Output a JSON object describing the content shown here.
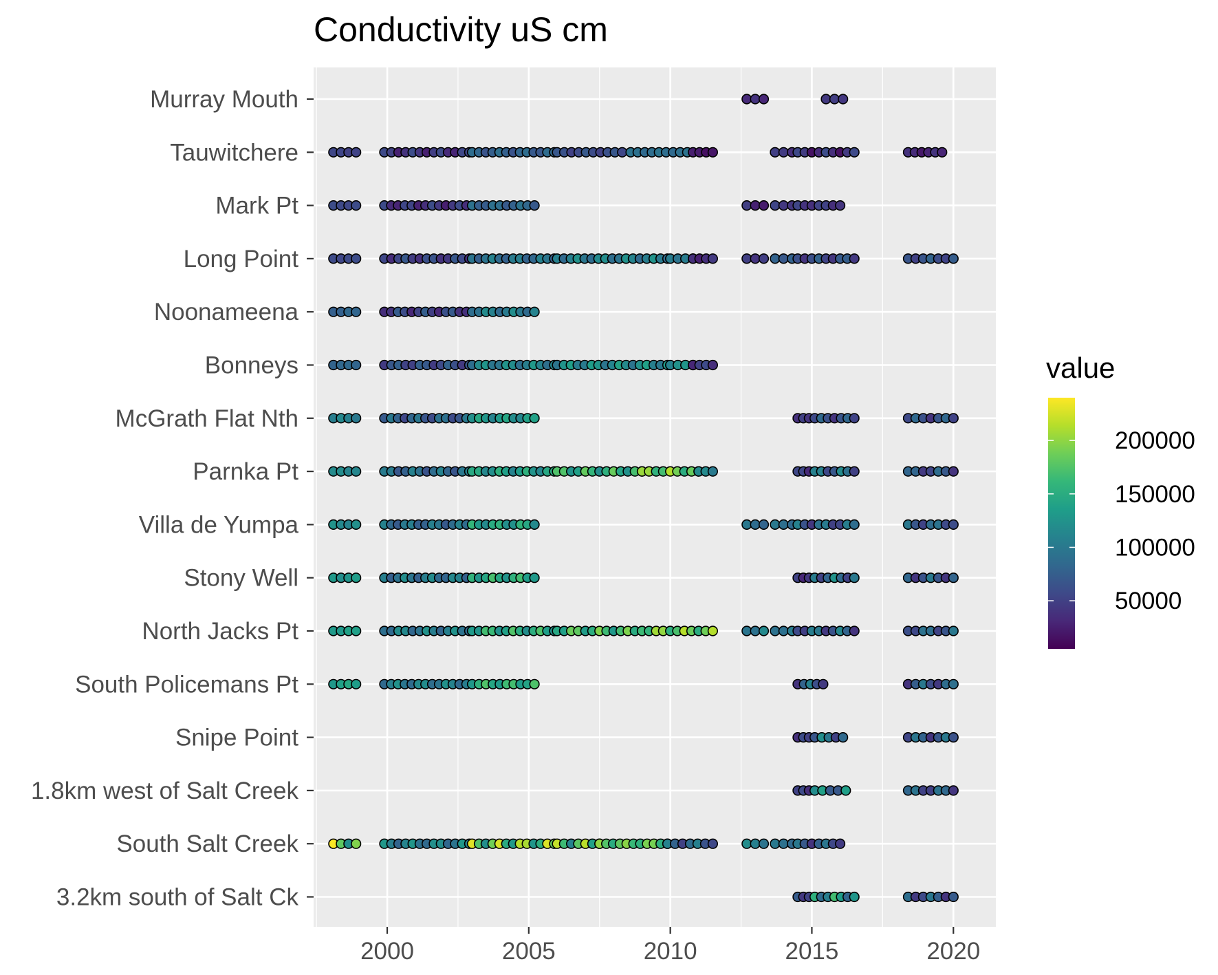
{
  "chart_data": {
    "type": "scatter",
    "title": "Conductivity uS cm",
    "xlabel": "",
    "ylabel": "",
    "xlim": [
      1997.4,
      2021.5
    ],
    "x_ticks": [
      "2000",
      "2005",
      "2010",
      "2015",
      "2020"
    ],
    "x_tick_values": [
      2000,
      2005,
      2010,
      2015,
      2020
    ],
    "grid": true,
    "legend": {
      "title": "value",
      "placement": "right",
      "type": "colorbar",
      "colormap": "viridis",
      "range": [
        5000,
        240000
      ],
      "tick_labels": [
        "200000",
        "150000",
        "100000",
        "50000"
      ],
      "tick_values": [
        200000,
        150000,
        100000,
        50000
      ]
    },
    "categories": [
      "Murray Mouth",
      "Tauwitchere",
      "Mark Pt",
      "Long Point",
      "Noonameena",
      "Bonneys",
      "McGrath Flat Nth",
      "Parnka Pt",
      "Villa de Yumpa",
      "Stony Well",
      "North Jacks Pt",
      "South Policemans Pt",
      "Snipe Point",
      "1.8km west of Salt Creek",
      "South Salt Creek",
      "3.2km south of Salt Ck"
    ],
    "series": [
      {
        "site": "Murray Mouth",
        "segments": [
          [
            2012.7,
            2013.3,
            25000,
            40000
          ],
          [
            2015.5,
            2016.1,
            40000,
            48000
          ]
        ]
      },
      {
        "site": "Tauwitchere",
        "segments": [
          [
            1998.1,
            1998.9,
            50000,
            55000
          ],
          [
            1999.9,
            2002.9,
            25000,
            60000
          ],
          [
            2003.0,
            2005.9,
            65000,
            90000
          ],
          [
            2006.0,
            2008.3,
            50000,
            70000
          ],
          [
            2008.6,
            2010.6,
            85000,
            95000
          ],
          [
            2010.8,
            2011.5,
            15000,
            25000
          ],
          [
            2013.7,
            2014.3,
            35000,
            50000
          ],
          [
            2014.5,
            2016.5,
            15000,
            60000
          ],
          [
            2018.4,
            2019.6,
            20000,
            40000
          ]
        ]
      },
      {
        "site": "Mark Pt",
        "segments": [
          [
            1998.1,
            1998.9,
            55000,
            60000
          ],
          [
            1999.9,
            2002.8,
            25000,
            60000
          ],
          [
            2003.0,
            2005.2,
            70000,
            95000
          ],
          [
            2012.7,
            2013.3,
            20000,
            50000
          ],
          [
            2013.7,
            2014.3,
            40000,
            55000
          ],
          [
            2014.5,
            2016.0,
            35000,
            55000
          ]
        ]
      },
      {
        "site": "Long Point",
        "segments": [
          [
            1998.1,
            1998.9,
            55000,
            60000
          ],
          [
            1999.9,
            2002.9,
            35000,
            70000
          ],
          [
            2003.0,
            2005.9,
            75000,
            110000
          ],
          [
            2006.0,
            2009.9,
            85000,
            125000
          ],
          [
            2010.0,
            2010.8,
            95000,
            110000
          ],
          [
            2010.8,
            2011.5,
            25000,
            45000
          ],
          [
            2012.7,
            2013.3,
            40000,
            55000
          ],
          [
            2013.7,
            2014.3,
            70000,
            85000
          ],
          [
            2014.5,
            2016.5,
            40000,
            80000
          ],
          [
            2018.4,
            2020.0,
            50000,
            80000
          ]
        ]
      },
      {
        "site": "Noonameena",
        "segments": [
          [
            1998.1,
            1998.9,
            75000,
            85000
          ],
          [
            1999.9,
            2002.8,
            30000,
            75000
          ],
          [
            2003.0,
            2005.2,
            85000,
            120000
          ]
        ]
      },
      {
        "site": "Bonneys",
        "segments": [
          [
            1998.1,
            1998.9,
            80000,
            85000
          ],
          [
            1999.9,
            2002.9,
            45000,
            80000
          ],
          [
            2003.0,
            2005.9,
            90000,
            130000
          ],
          [
            2006.0,
            2009.9,
            95000,
            140000
          ],
          [
            2010.0,
            2010.8,
            110000,
            130000
          ],
          [
            2010.8,
            2011.5,
            30000,
            60000
          ]
        ]
      },
      {
        "site": "McGrath Flat Nth",
        "segments": [
          [
            1998.1,
            1998.9,
            100000,
            115000
          ],
          [
            1999.9,
            2002.8,
            55000,
            100000
          ],
          [
            2003.0,
            2005.2,
            110000,
            145000
          ],
          [
            2014.5,
            2014.9,
            30000,
            50000
          ],
          [
            2015.1,
            2016.5,
            40000,
            85000
          ],
          [
            2018.4,
            2020.0,
            40000,
            85000
          ]
        ]
      },
      {
        "site": "Parnka Pt",
        "segments": [
          [
            1998.1,
            1998.9,
            110000,
            120000
          ],
          [
            1999.9,
            2002.9,
            65000,
            110000
          ],
          [
            2003.0,
            2005.9,
            110000,
            155000
          ],
          [
            2006.0,
            2009.0,
            120000,
            185000
          ],
          [
            2009.0,
            2011.0,
            150000,
            215000
          ],
          [
            2011.0,
            2011.5,
            100000,
            120000
          ],
          [
            2014.5,
            2014.9,
            30000,
            60000
          ],
          [
            2015.1,
            2016.5,
            50000,
            120000
          ],
          [
            2018.4,
            2020.0,
            40000,
            90000
          ]
        ]
      },
      {
        "site": "Villa de Yumpa",
        "segments": [
          [
            1998.1,
            1998.9,
            110000,
            125000
          ],
          [
            1999.9,
            2002.8,
            70000,
            110000
          ],
          [
            2003.0,
            2005.2,
            115000,
            160000
          ],
          [
            2012.7,
            2013.3,
            80000,
            100000
          ],
          [
            2013.7,
            2014.3,
            85000,
            100000
          ],
          [
            2014.5,
            2016.5,
            40000,
            110000
          ],
          [
            2018.4,
            2020.0,
            50000,
            100000
          ]
        ]
      },
      {
        "site": "Stony Well",
        "segments": [
          [
            1998.1,
            1998.9,
            120000,
            135000
          ],
          [
            1999.9,
            2002.8,
            75000,
            120000
          ],
          [
            2003.0,
            2005.2,
            125000,
            170000
          ],
          [
            2014.5,
            2014.9,
            30000,
            60000
          ],
          [
            2015.1,
            2016.5,
            50000,
            125000
          ],
          [
            2018.4,
            2020.0,
            40000,
            100000
          ]
        ]
      },
      {
        "site": "North Jacks Pt",
        "segments": [
          [
            1998.1,
            1998.9,
            130000,
            140000
          ],
          [
            1999.9,
            2002.9,
            80000,
            125000
          ],
          [
            2003.0,
            2005.9,
            120000,
            175000
          ],
          [
            2006.0,
            2009.0,
            130000,
            195000
          ],
          [
            2009.0,
            2011.5,
            150000,
            215000
          ],
          [
            2012.7,
            2013.3,
            90000,
            120000
          ],
          [
            2013.7,
            2014.3,
            90000,
            105000
          ],
          [
            2014.5,
            2016.5,
            40000,
            115000
          ],
          [
            2018.4,
            2020.0,
            50000,
            100000
          ]
        ]
      },
      {
        "site": "South Policemans Pt",
        "segments": [
          [
            1998.1,
            1998.9,
            130000,
            145000
          ],
          [
            1999.9,
            2002.8,
            85000,
            125000
          ],
          [
            2003.0,
            2005.2,
            130000,
            175000
          ],
          [
            2014.5,
            2015.4,
            40000,
            110000
          ],
          [
            2018.4,
            2020.0,
            40000,
            100000
          ]
        ]
      },
      {
        "site": "Snipe Point",
        "segments": [
          [
            2014.5,
            2014.9,
            30000,
            60000
          ],
          [
            2015.1,
            2016.1,
            50000,
            125000
          ],
          [
            2018.4,
            2020.0,
            40000,
            100000
          ]
        ]
      },
      {
        "site": "1.8km west of Salt Creek",
        "segments": [
          [
            2014.5,
            2014.9,
            30000,
            60000
          ],
          [
            2015.1,
            2016.2,
            55000,
            145000
          ],
          [
            2018.4,
            2020.0,
            40000,
            100000
          ]
        ]
      },
      {
        "site": "South Salt Creek",
        "segments": [
          [
            1998.1,
            1998.9,
            120000,
            240000
          ],
          [
            1999.9,
            2002.9,
            80000,
            130000
          ],
          [
            2003.0,
            2005.9,
            120000,
            230000
          ],
          [
            2006.0,
            2007.5,
            110000,
            220000
          ],
          [
            2007.5,
            2009.9,
            150000,
            200000
          ],
          [
            2009.9,
            2011.5,
            50000,
            110000
          ],
          [
            2012.7,
            2013.3,
            95000,
            120000
          ],
          [
            2013.7,
            2014.3,
            85000,
            100000
          ],
          [
            2014.5,
            2016.0,
            40000,
            100000
          ]
        ]
      },
      {
        "site": "3.2km south of Salt Ck",
        "segments": [
          [
            2014.5,
            2014.9,
            40000,
            80000
          ],
          [
            2015.1,
            2016.5,
            80000,
            170000
          ],
          [
            2018.4,
            2020.0,
            40000,
            100000
          ]
        ]
      }
    ]
  }
}
